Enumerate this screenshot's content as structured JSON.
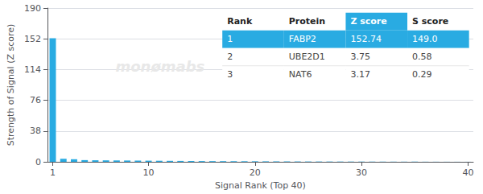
{
  "chart_data": {
    "type": "bar",
    "xlabel": "Signal Rank (Top 40)",
    "ylabel": "Strength of Signal (Z score)",
    "x": [
      1,
      2,
      3,
      4,
      5,
      6,
      7,
      8,
      9,
      10,
      11,
      12,
      13,
      14,
      15,
      16,
      17,
      18,
      19,
      20,
      21,
      22,
      23,
      24,
      25,
      26,
      27,
      28,
      29,
      30,
      31,
      32,
      33,
      34,
      35,
      36,
      37,
      38,
      39,
      40
    ],
    "values": [
      152.74,
      3.75,
      3.17,
      2.1,
      1.9,
      1.8,
      1.7,
      1.6,
      1.5,
      1.4,
      1.3,
      1.2,
      1.1,
      1.0,
      0.9,
      0.85,
      0.8,
      0.75,
      0.7,
      0.65,
      0.6,
      0.55,
      0.5,
      0.45,
      0.4,
      0.38,
      0.35,
      0.32,
      0.3,
      0.28,
      0.25,
      0.22,
      0.2,
      0.18,
      0.16,
      0.14,
      0.12,
      0.1,
      0.08,
      0.06
    ],
    "color": "#29ABE2",
    "xlim": [
      0.5,
      40.5
    ],
    "xticks": [
      1,
      10,
      20,
      30,
      40
    ],
    "ylim": [
      0,
      190
    ],
    "yticks": [
      0,
      38,
      76,
      114,
      152,
      190
    ],
    "grid": true,
    "annotations": [
      "monømabs"
    ],
    "table": {
      "headers": [
        "Rank",
        "Protein",
        "Z score",
        "S score"
      ],
      "rows": [
        [
          "1",
          "FABP2",
          "152.74",
          "149.0"
        ],
        [
          "2",
          "UBE2D1",
          "3.75",
          "0.58"
        ],
        [
          "3",
          "NAT6",
          "3.17",
          "0.29"
        ]
      ]
    }
  }
}
